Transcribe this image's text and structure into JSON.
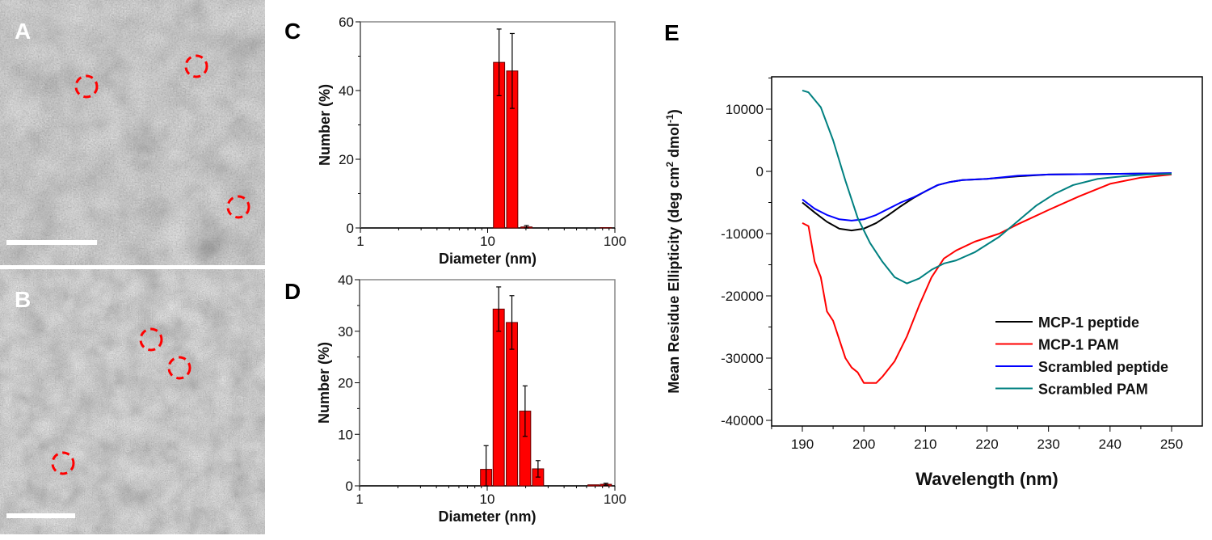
{
  "panels": {
    "a": "A",
    "b": "B",
    "c": "C",
    "d": "D",
    "e": "E"
  },
  "colors": {
    "bar": "#ff0000",
    "marker_circle": "#ff0000",
    "scale_bar": "#ffffff"
  },
  "micrographs": [
    {
      "label": "A",
      "content": "grayscale electron micrograph with red dashed circles marking particles",
      "circles": 3
    },
    {
      "label": "B",
      "content": "grayscale electron micrograph with red dashed circles marking particles",
      "circles": 3
    }
  ],
  "chart_data": [
    {
      "panel": "C",
      "type": "bar",
      "xlabel": "Diameter (nm)",
      "ylabel": "Number (%)",
      "xscale": "log",
      "xlim": [
        1,
        100
      ],
      "ylim": [
        0,
        60
      ],
      "xticks": [
        "1",
        "10",
        "100"
      ],
      "yticks": [
        "0",
        "20",
        "40",
        "60"
      ],
      "bars": [
        {
          "x": 12.3,
          "y": 48.2,
          "err": 9.7
        },
        {
          "x": 15.6,
          "y": 45.7,
          "err": 10.9
        },
        {
          "x": 20.2,
          "y": 0.3,
          "err": 0.4
        },
        {
          "x": 85,
          "y": 0.1,
          "err": 0
        }
      ]
    },
    {
      "panel": "D",
      "type": "bar",
      "xlabel": "Diameter (nm)",
      "ylabel": "Number (%)",
      "xscale": "log",
      "xlim": [
        1,
        100
      ],
      "ylim": [
        0,
        40
      ],
      "xticks": [
        "1",
        "10",
        "100"
      ],
      "yticks": [
        "0",
        "10",
        "20",
        "30",
        "40"
      ],
      "bars": [
        {
          "x": 9.8,
          "y": 3.2,
          "err": 4.6
        },
        {
          "x": 12.3,
          "y": 34.3,
          "err": 4.3
        },
        {
          "x": 15.6,
          "y": 31.7,
          "err": 5.2
        },
        {
          "x": 19.8,
          "y": 14.5,
          "err": 4.9
        },
        {
          "x": 25.0,
          "y": 3.3,
          "err": 1.6
        },
        {
          "x": 68,
          "y": 0.2,
          "err": 0
        },
        {
          "x": 85,
          "y": 0.3,
          "err": 0.2
        }
      ]
    },
    {
      "panel": "E",
      "type": "line",
      "xlabel": "Wavelength (nm)",
      "ylabel": "Mean Residue Ellipticity (deg cm",
      "ylabel_sup1": "2",
      "ylabel_mid": " dmol",
      "ylabel_sup2": "-1",
      "ylabel_end": ")",
      "xlim": [
        185,
        255
      ],
      "ylim": [
        -40000,
        15000
      ],
      "xticks": [
        "190",
        "200",
        "210",
        "220",
        "230",
        "240",
        "250"
      ],
      "yticks": [
        "-40000",
        "-30000",
        "-20000",
        "-10000",
        "0",
        "10000"
      ],
      "legend_position": "bottom-right",
      "series": [
        {
          "name": "MCP-1 peptide",
          "color": "#000000",
          "points": [
            [
              190,
              -5000
            ],
            [
              192,
              -6600
            ],
            [
              194,
              -8100
            ],
            [
              196,
              -9200
            ],
            [
              198,
              -9500
            ],
            [
              200,
              -9200
            ],
            [
              202,
              -8300
            ],
            [
              204,
              -7000
            ],
            [
              206,
              -5600
            ],
            [
              208,
              -4300
            ],
            [
              210,
              -3200
            ],
            [
              212,
              -2200
            ],
            [
              214,
              -1700
            ],
            [
              216,
              -1400
            ],
            [
              220,
              -1200
            ],
            [
              225,
              -800
            ],
            [
              230,
              -500
            ],
            [
              240,
              -400
            ],
            [
              250,
              -300
            ]
          ]
        },
        {
          "name": "MCP-1 PAM",
          "color": "#ff0000",
          "points": [
            [
              190,
              -8300
            ],
            [
              191,
              -8800
            ],
            [
              192,
              -14500
            ],
            [
              193,
              -17000
            ],
            [
              194,
              -22500
            ],
            [
              195,
              -24000
            ],
            [
              196,
              -27000
            ],
            [
              197,
              -30000
            ],
            [
              198,
              -31500
            ],
            [
              199,
              -32300
            ],
            [
              200,
              -34000
            ],
            [
              202,
              -34000
            ],
            [
              203,
              -33000
            ],
            [
              205,
              -30500
            ],
            [
              207,
              -26500
            ],
            [
              209,
              -21500
            ],
            [
              211,
              -17000
            ],
            [
              213,
              -14000
            ],
            [
              215,
              -12700
            ],
            [
              218,
              -11300
            ],
            [
              222,
              -10000
            ],
            [
              225,
              -8500
            ],
            [
              230,
              -6200
            ],
            [
              235,
              -4000
            ],
            [
              240,
              -2000
            ],
            [
              245,
              -1000
            ],
            [
              250,
              -500
            ]
          ]
        },
        {
          "name": "Scrambled peptide",
          "color": "#0000ff",
          "points": [
            [
              190,
              -4500
            ],
            [
              192,
              -6000
            ],
            [
              194,
              -7000
            ],
            [
              196,
              -7700
            ],
            [
              198,
              -7900
            ],
            [
              200,
              -7700
            ],
            [
              202,
              -7000
            ],
            [
              204,
              -6000
            ],
            [
              206,
              -5000
            ],
            [
              208,
              -4200
            ],
            [
              210,
              -3200
            ],
            [
              212,
              -2200
            ],
            [
              214,
              -1700
            ],
            [
              216,
              -1400
            ],
            [
              220,
              -1200
            ],
            [
              225,
              -700
            ],
            [
              230,
              -500
            ],
            [
              240,
              -400
            ],
            [
              250,
              -300
            ]
          ]
        },
        {
          "name": "Scrambled PAM",
          "color": "#008080",
          "points": [
            [
              190,
              13000
            ],
            [
              191,
              12700
            ],
            [
              193,
              10300
            ],
            [
              195,
              5000
            ],
            [
              197,
              -1500
            ],
            [
              199,
              -7500
            ],
            [
              201,
              -11500
            ],
            [
              203,
              -14500
            ],
            [
              205,
              -17000
            ],
            [
              207,
              -18000
            ],
            [
              209,
              -17200
            ],
            [
              211,
              -15800
            ],
            [
              213,
              -14800
            ],
            [
              215,
              -14300
            ],
            [
              218,
              -13000
            ],
            [
              222,
              -10500
            ],
            [
              225,
              -8000
            ],
            [
              228,
              -5500
            ],
            [
              231,
              -3600
            ],
            [
              234,
              -2200
            ],
            [
              238,
              -1200
            ],
            [
              242,
              -800
            ],
            [
              246,
              -500
            ],
            [
              250,
              -400
            ]
          ]
        }
      ]
    }
  ]
}
